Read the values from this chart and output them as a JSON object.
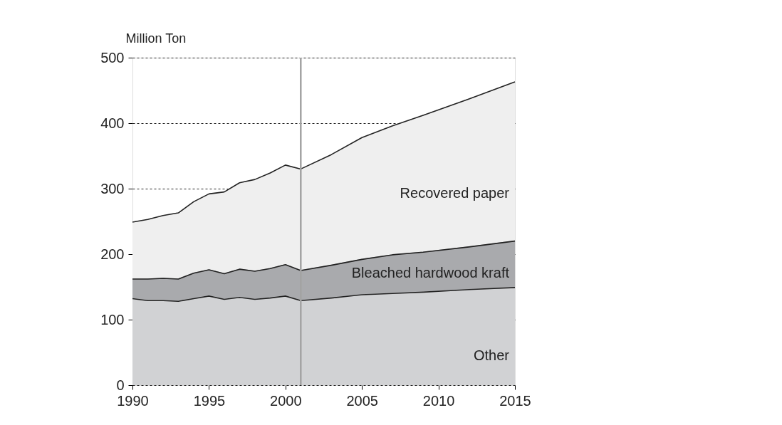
{
  "chart_data": {
    "type": "area",
    "stacked": true,
    "ylabel": "Million Ton",
    "x": [
      1990,
      1991,
      1992,
      1993,
      1994,
      1995,
      1996,
      1997,
      1998,
      1999,
      2000,
      2001,
      2003,
      2005,
      2007,
      2009,
      2012,
      2015
    ],
    "series": [
      {
        "name": "Other",
        "color": "#d1d2d4",
        "values": [
          132,
          129,
          129,
          128,
          132,
          136,
          131,
          134,
          131,
          133,
          136,
          129,
          133,
          138,
          140,
          142,
          146,
          149
        ]
      },
      {
        "name": "Bleached hardwood kraft",
        "color": "#a9aaad",
        "values": [
          30,
          33,
          34,
          34,
          39,
          40,
          39,
          43,
          43,
          45,
          48,
          46,
          50,
          54,
          59,
          61,
          65,
          71
        ]
      },
      {
        "name": "Recovered paper",
        "color": "#efefef",
        "values": [
          87,
          91,
          96,
          101,
          109,
          116,
          125,
          132,
          140,
          146,
          152,
          155,
          169,
          186,
          197,
          209,
          226,
          243
        ]
      }
    ],
    "xlim": [
      1990,
      2015
    ],
    "xticks": [
      1990,
      1995,
      2000,
      2005,
      2010,
      2015
    ],
    "ylim": [
      0,
      500
    ],
    "yticks": [
      0,
      100,
      200,
      300,
      400,
      500
    ],
    "grid": "y",
    "legend": false,
    "ref_lines": [
      {
        "axis": "x",
        "value": 2001,
        "color": "#a3a3a3"
      }
    ]
  }
}
